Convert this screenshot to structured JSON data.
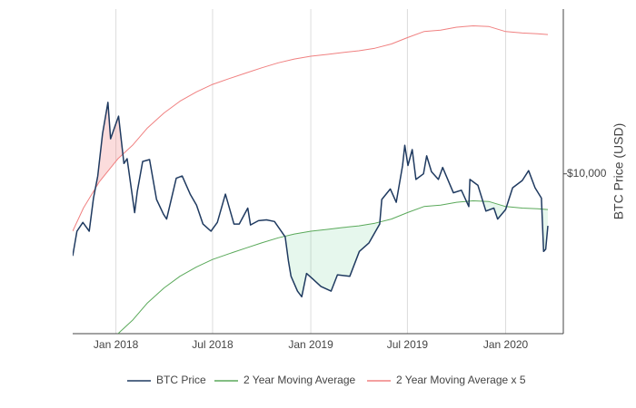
{
  "chart_data": {
    "type": "line",
    "ylabel": "BTC Price (USD)",
    "log_y": true,
    "grid_x": true,
    "legend": "bottom",
    "xlim": [
      "2017-10-12",
      "2020-04-18"
    ],
    "xticks": [
      {
        "value": "2018-01-01",
        "label": "Jan 2018"
      },
      {
        "value": "2018-07-01",
        "label": "Jul 2018"
      },
      {
        "value": "2019-01-01",
        "label": "Jan 2019"
      },
      {
        "value": "2019-07-01",
        "label": "Jul 2019"
      },
      {
        "value": "2020-01-01",
        "label": "Jan 2020"
      }
    ],
    "ylim": [
      2300,
      45500
    ],
    "yticks": [
      {
        "value": 10000,
        "label": "$10,000"
      }
    ],
    "series": [
      {
        "name": "BTC Price",
        "color": "#1f3a60",
        "x": [
          "2017-10-12",
          "2017-10-20",
          "2017-10-31",
          "2017-11-12",
          "2017-11-20",
          "2017-11-28",
          "2017-12-07",
          "2017-12-17",
          "2017-12-22",
          "2017-12-28",
          "2018-01-06",
          "2018-01-16",
          "2018-01-22",
          "2018-02-05",
          "2018-02-10",
          "2018-02-20",
          "2018-03-05",
          "2018-03-18",
          "2018-03-31",
          "2018-04-06",
          "2018-04-24",
          "2018-05-05",
          "2018-05-20",
          "2018-06-01",
          "2018-06-13",
          "2018-06-28",
          "2018-07-10",
          "2018-07-25",
          "2018-08-10",
          "2018-08-20",
          "2018-09-05",
          "2018-09-10",
          "2018-09-25",
          "2018-10-10",
          "2018-10-25",
          "2018-11-14",
          "2018-11-20",
          "2018-11-25",
          "2018-12-07",
          "2018-12-15",
          "2018-12-24",
          "2019-01-05",
          "2019-01-20",
          "2019-02-08",
          "2019-02-20",
          "2019-03-15",
          "2019-04-02",
          "2019-04-20",
          "2019-05-10",
          "2019-05-14",
          "2019-05-30",
          "2019-06-10",
          "2019-06-22",
          "2019-06-26",
          "2019-07-02",
          "2019-07-10",
          "2019-07-17",
          "2019-07-31",
          "2019-08-06",
          "2019-08-15",
          "2019-08-28",
          "2019-09-05",
          "2019-09-25",
          "2019-10-10",
          "2019-10-24",
          "2019-10-26",
          "2019-11-10",
          "2019-11-25",
          "2019-12-10",
          "2019-12-17",
          "2020-01-01",
          "2020-01-14",
          "2020-02-01",
          "2020-02-13",
          "2020-02-25",
          "2020-03-08",
          "2020-03-12",
          "2020-03-16",
          "2020-03-20"
        ],
        "values": [
          4700,
          5900,
          6400,
          5900,
          8000,
          9800,
          14500,
          19300,
          13800,
          15000,
          17000,
          11000,
          11500,
          7000,
          8500,
          11200,
          11400,
          7900,
          6900,
          6600,
          9600,
          9800,
          8300,
          7500,
          6300,
          5900,
          6400,
          8300,
          6300,
          6300,
          7300,
          6250,
          6500,
          6550,
          6450,
          5600,
          4500,
          3900,
          3400,
          3230,
          4000,
          3800,
          3550,
          3400,
          3950,
          3900,
          4900,
          5300,
          6300,
          7900,
          8700,
          7700,
          10800,
          13000,
          10800,
          12500,
          9500,
          10000,
          11800,
          10200,
          9500,
          10600,
          8400,
          8600,
          7400,
          9500,
          9000,
          7100,
          7300,
          6600,
          7200,
          8800,
          9400,
          10300,
          8800,
          8000,
          4900,
          5000,
          6200
        ]
      },
      {
        "name": "2 Year Moving Average",
        "color": "#5aa95a",
        "x": [
          "2018-01-05",
          "2018-02-01",
          "2018-03-01",
          "2018-04-01",
          "2018-05-01",
          "2018-06-01",
          "2018-07-01",
          "2018-08-01",
          "2018-09-01",
          "2018-10-01",
          "2018-11-01",
          "2018-12-01",
          "2019-01-01",
          "2019-02-01",
          "2019-03-01",
          "2019-04-01",
          "2019-05-01",
          "2019-06-01",
          "2019-07-01",
          "2019-08-01",
          "2019-09-01",
          "2019-10-01",
          "2019-11-01",
          "2019-12-01",
          "2020-01-01",
          "2020-02-01",
          "2020-03-01",
          "2020-03-20"
        ],
        "values": [
          2300,
          2600,
          3050,
          3500,
          3900,
          4250,
          4550,
          4800,
          5050,
          5300,
          5550,
          5750,
          5900,
          6000,
          6100,
          6200,
          6350,
          6600,
          7000,
          7400,
          7500,
          7700,
          7800,
          7750,
          7400,
          7300,
          7250,
          7200
        ]
      },
      {
        "name": "2 Year Moving Average x 5",
        "color": "#f08080",
        "x": [
          "2017-10-12",
          "2017-11-01",
          "2017-12-01",
          "2018-01-05",
          "2018-02-01",
          "2018-03-01",
          "2018-04-01",
          "2018-05-01",
          "2018-06-01",
          "2018-07-01",
          "2018-08-01",
          "2018-09-01",
          "2018-10-01",
          "2018-11-01",
          "2018-12-01",
          "2019-01-01",
          "2019-02-01",
          "2019-03-01",
          "2019-04-01",
          "2019-05-01",
          "2019-06-01",
          "2019-07-01",
          "2019-08-01",
          "2019-09-01",
          "2019-10-01",
          "2019-11-01",
          "2019-12-01",
          "2020-01-01",
          "2020-02-01",
          "2020-03-01",
          "2020-03-20"
        ],
        "values": [
          5900,
          7300,
          9300,
          11500,
          13000,
          15250,
          17500,
          19500,
          21250,
          22750,
          24000,
          25250,
          26500,
          27750,
          28750,
          29500,
          30000,
          30500,
          31000,
          31750,
          33000,
          35000,
          37000,
          37500,
          38500,
          39000,
          38750,
          37000,
          36500,
          36250,
          36000
        ]
      }
    ]
  }
}
